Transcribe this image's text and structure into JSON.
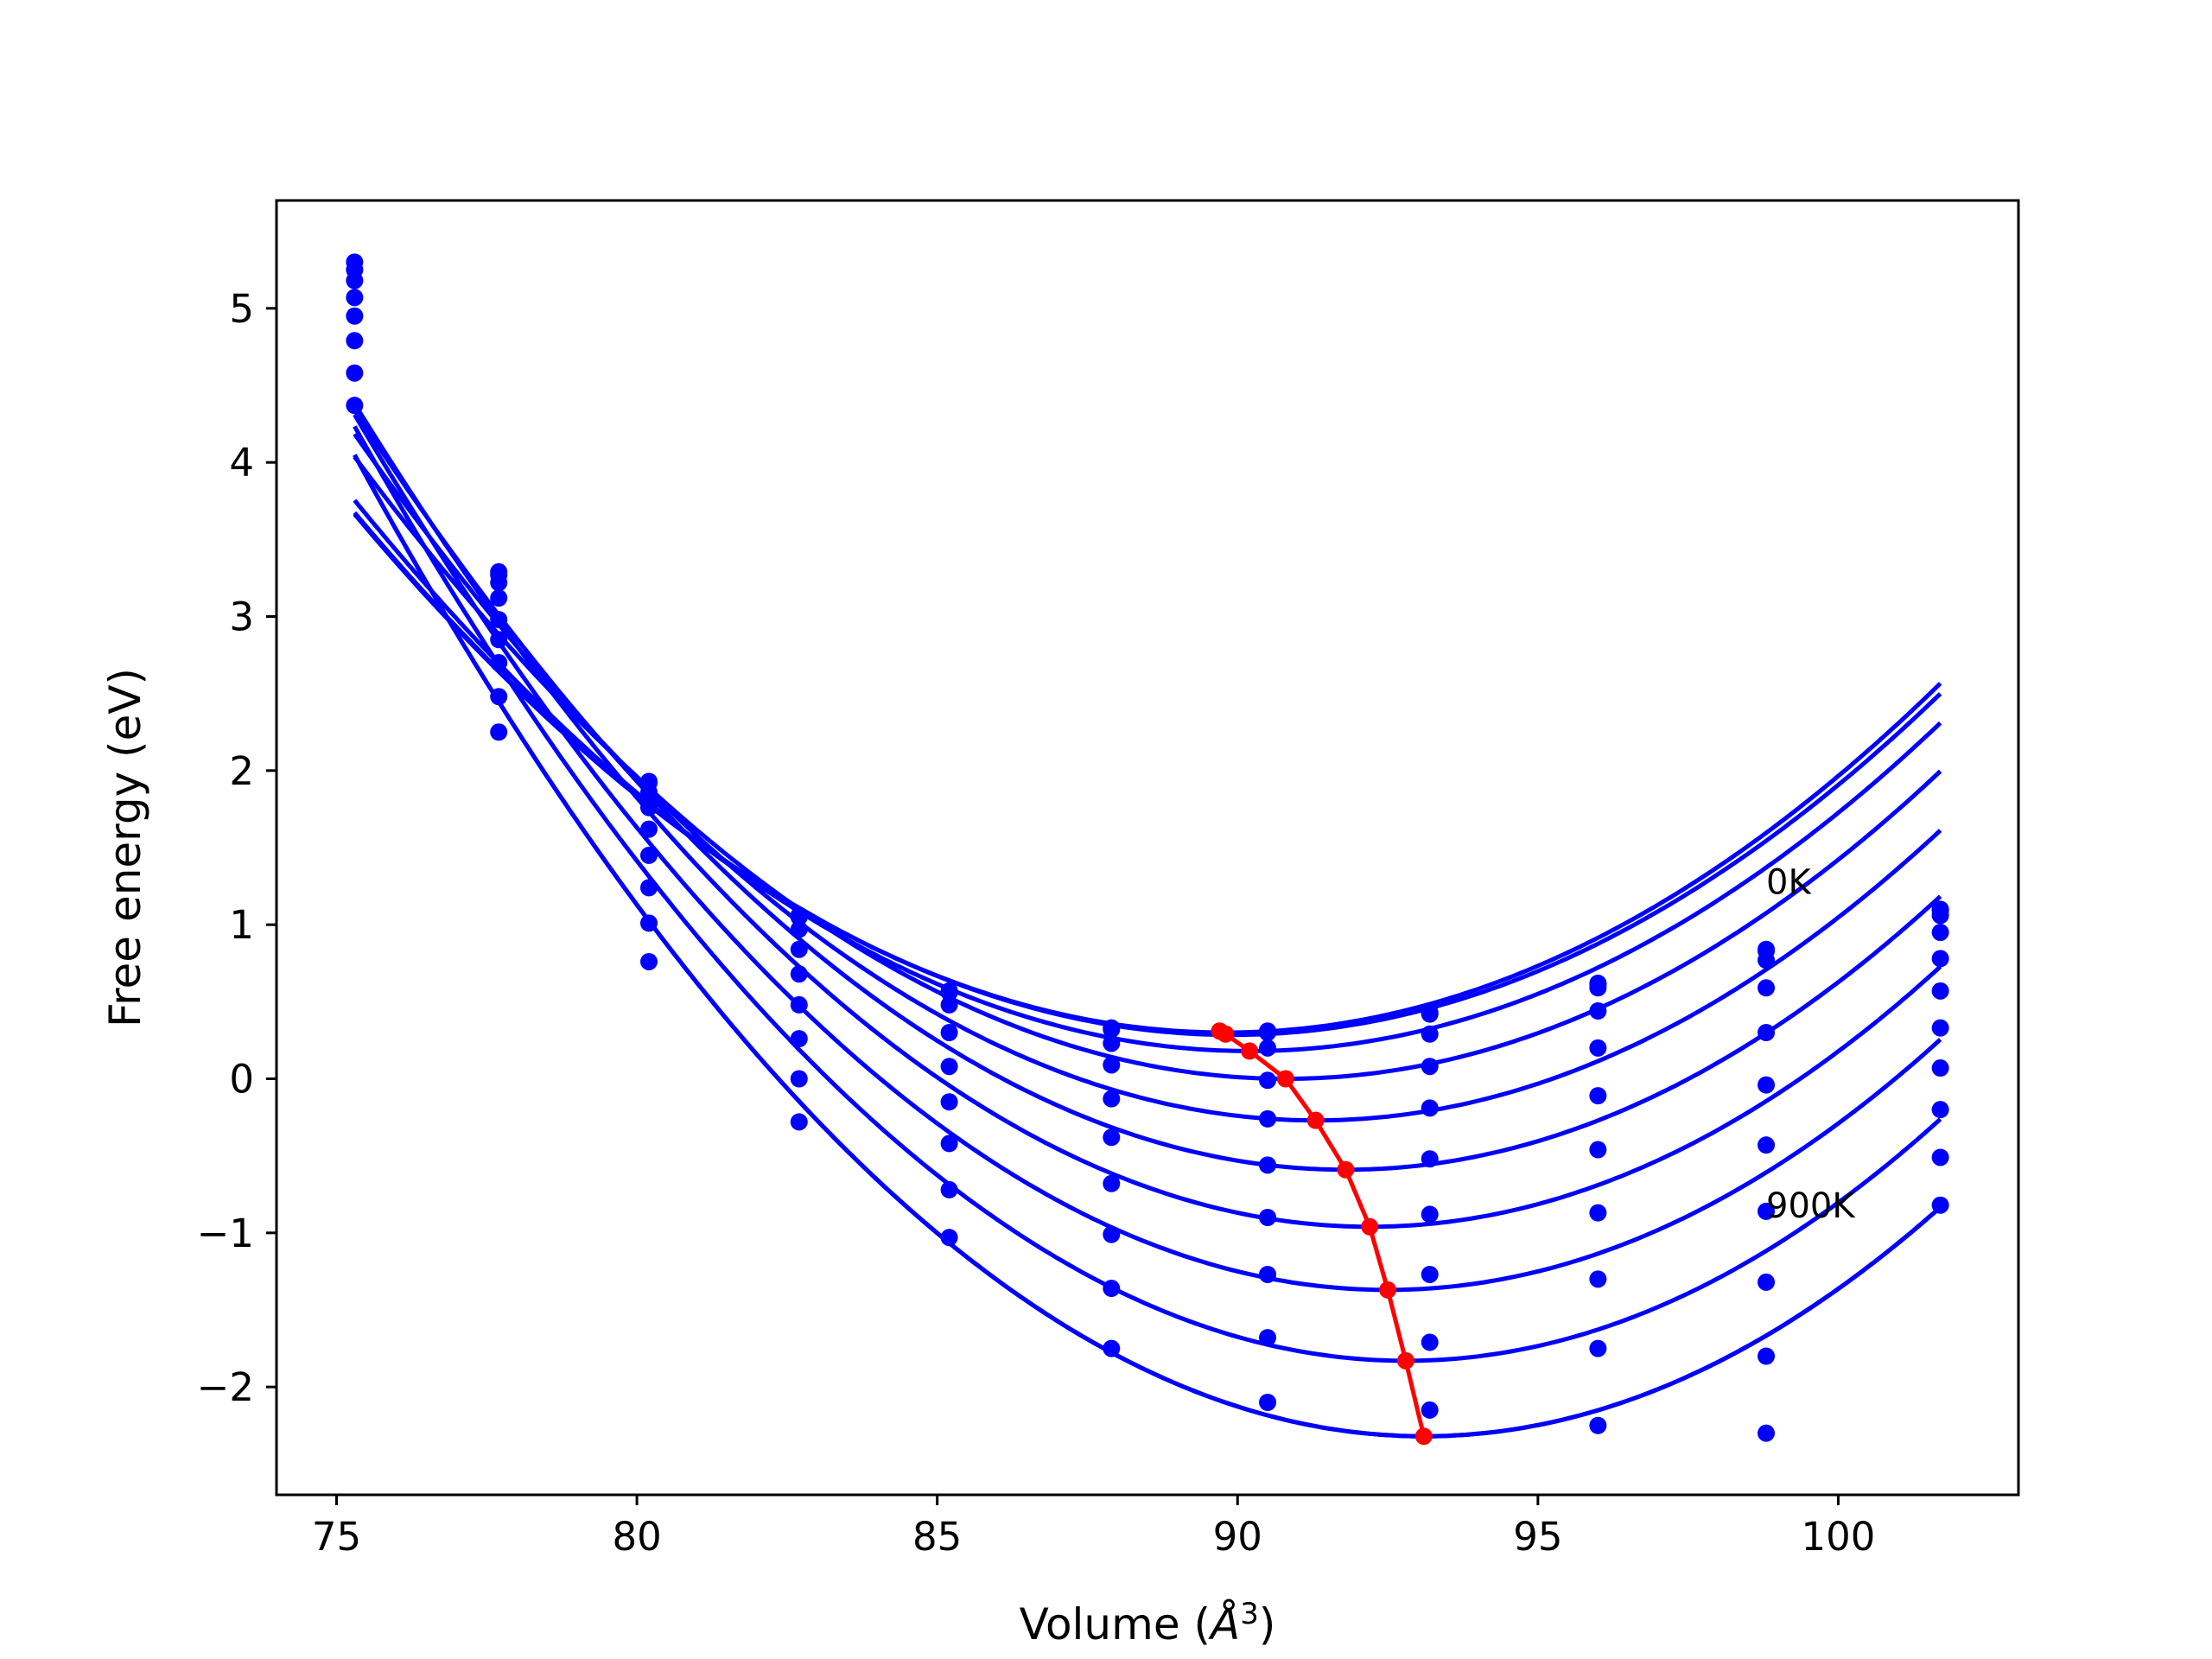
{
  "chart_data": {
    "type": "scatter",
    "xlabel": "Volume (",
    "xlabel_unit": "Å",
    "xlabel_sup": "3",
    "xlabel_close": ")",
    "ylabel": "Free energy (eV)",
    "xlim": [
      74,
      103
    ],
    "ylim": [
      -2.7,
      5.7
    ],
    "xticks": [
      75,
      80,
      85,
      90,
      95,
      100
    ],
    "yticks": [
      5,
      4,
      3,
      2,
      1,
      0,
      -1,
      -2
    ],
    "xtick_labels": [
      "75",
      "80",
      "85",
      "90",
      "95",
      "100"
    ],
    "ytick_labels": [
      "5",
      "4",
      "3",
      "2",
      "1",
      "0",
      "−1",
      "−2"
    ],
    "annotations": [
      {
        "text": "0K",
        "x": 98.8,
        "y": 1.2
      },
      {
        "text": "900K",
        "x": 98.8,
        "y": -0.9
      }
    ],
    "grid": false,
    "colors": {
      "isotherms": "#0000ff",
      "minima": "#ff0000"
    },
    "volumes": [
      75.3,
      77.7,
      80.2,
      82.7,
      85.2,
      87.9,
      90.5,
      93.2,
      96.0,
      98.8,
      101.7
    ],
    "isotherms": [
      {
        "points": [
          5.3,
          3.29,
          1.93,
          1.06,
          0.57,
          0.33,
          0.31,
          0.43,
          0.62,
          0.84,
          1.1
        ],
        "fit": {
          "v0": 89.8,
          "emin": 0.3,
          "k": 0.016,
          "v_end": 101.7
        }
      },
      {
        "points": [
          5.25,
          3.27,
          1.92,
          1.05,
          0.56,
          0.32,
          0.3,
          0.42,
          0.61,
          0.83,
          1.09
        ],
        "fit": {
          "v0": 89.9,
          "emin": 0.285,
          "k": 0.0159,
          "v_end": 101.7
        }
      },
      {
        "points": [
          5.18,
          3.22,
          1.86,
          0.97,
          0.48,
          0.23,
          0.2,
          0.29,
          0.59,
          0.77,
          1.06
        ],
        "fit": {
          "v0": 90.2,
          "emin": 0.18,
          "k": 0.0161,
          "v_end": 101.7
        }
      },
      {
        "points": [
          5.07,
          3.12,
          1.76,
          0.84,
          0.3,
          0.09,
          -0.01,
          0.08,
          0.44,
          0.59,
          0.95
        ],
        "fit": {
          "v0": 90.8,
          "emin": 0.0,
          "k": 0.0168,
          "v_end": 101.7
        }
      },
      {
        "points": [
          4.95,
          2.98,
          1.62,
          0.68,
          0.08,
          -0.13,
          -0.26,
          -0.19,
          0.2,
          0.3,
          0.78
        ],
        "fit": {
          "v0": 91.3,
          "emin": -0.27,
          "k": 0.0174,
          "v_end": 101.7
        }
      },
      {
        "points": [
          4.79,
          2.85,
          1.45,
          0.48,
          -0.15,
          -0.38,
          -0.56,
          -0.52,
          -0.11,
          -0.04,
          0.57
        ],
        "fit": {
          "v0": 91.8,
          "emin": -0.59,
          "k": 0.0181,
          "v_end": 101.7
        }
      },
      {
        "points": [
          4.58,
          2.7,
          1.24,
          0.26,
          -0.42,
          -0.68,
          -0.9,
          -0.88,
          -0.46,
          -0.43,
          0.33
        ],
        "fit": {
          "v0": 92.2,
          "emin": -0.96,
          "k": 0.0187,
          "v_end": 101.7
        }
      },
      {
        "points": [
          4.37,
          2.48,
          1.01,
          0.0,
          -0.72,
          -1.01,
          -1.27,
          -1.27,
          -0.87,
          -0.86,
          0.07
        ],
        "fit": {
          "v0": 92.5,
          "emin": -1.37,
          "k": 0.0192,
          "v_end": 101.7
        }
      },
      {
        "points": [
          null,
          2.25,
          0.76,
          -0.28,
          -1.03,
          -1.36,
          -1.68,
          -1.71,
          -1.3,
          -1.32,
          -0.2
        ],
        "fit": {
          "v0": 92.8,
          "emin": -1.83,
          "k": 0.0198,
          "v_end": 101.7
        }
      },
      {
        "points": [
          null,
          null,
          null,
          null,
          null,
          -1.75,
          -2.1,
          -2.15,
          -1.75,
          -1.8,
          -0.51
        ],
        "fit": {
          "v0": 93.1,
          "emin": -2.32,
          "k": 0.0201,
          "v_end": 101.7
        }
      },
      {
        "points": [
          null,
          null,
          null,
          null,
          null,
          null,
          null,
          null,
          -2.25,
          -2.3,
          -0.82
        ],
        "fit": {
          "v0": 93.1,
          "emin": -2.32,
          "k": 0.0201,
          "v_end": 101.7
        }
      }
    ],
    "minima": {
      "x": [
        89.7,
        89.8,
        90.2,
        90.8,
        91.3,
        91.8,
        92.2,
        92.5,
        92.8,
        93.1
      ],
      "y": [
        0.31,
        0.29,
        0.18,
        0.0,
        -0.27,
        -0.59,
        -0.96,
        -1.37,
        -1.83,
        -2.32
      ]
    }
  }
}
